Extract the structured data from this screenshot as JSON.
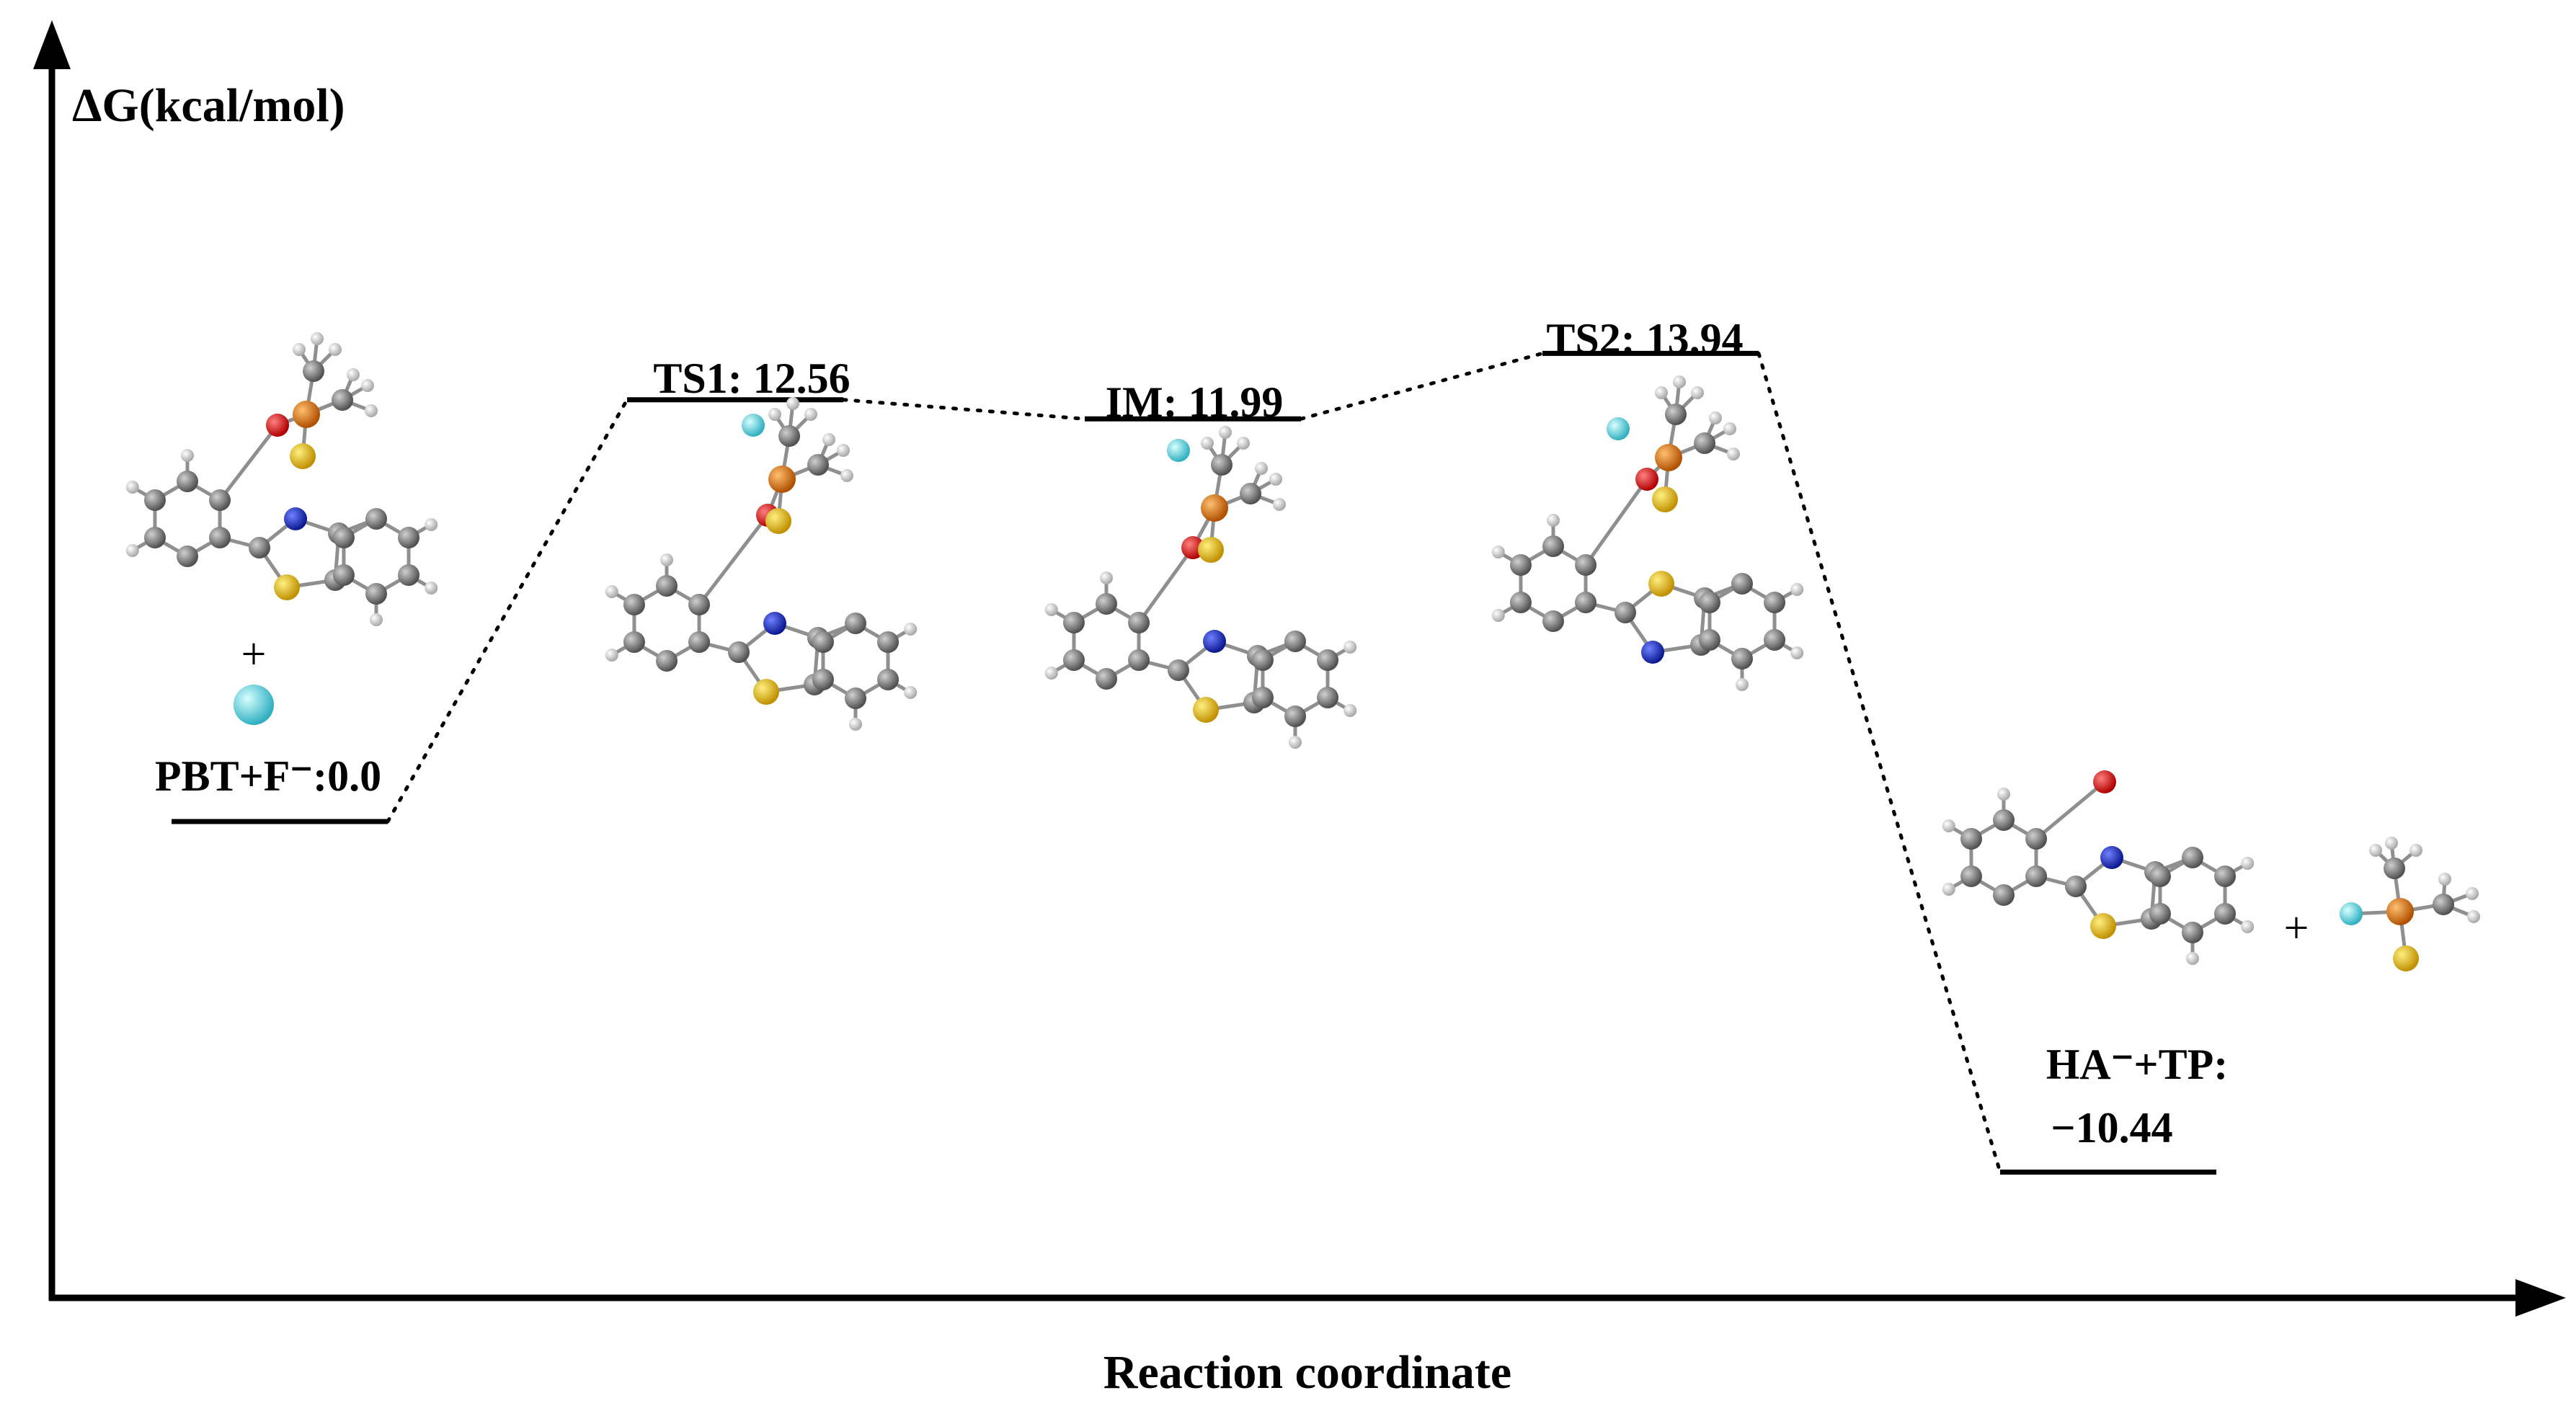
{
  "chart_data": {
    "type": "energy-profile",
    "ylabel": "ΔG(kcal/mol)",
    "xlabel": "Reaction coordinate",
    "ylim": [
      -16,
      30
    ],
    "levels": [
      {
        "id": "reactant",
        "name": "PBT+F⁻",
        "label": "PBT+F⁻:0.0",
        "value": 0.0
      },
      {
        "id": "ts1",
        "name": "TS1",
        "label": "TS1: 12.56",
        "value": 12.56
      },
      {
        "id": "im",
        "name": "IM",
        "label": "IM: 11.99",
        "value": 11.99
      },
      {
        "id": "ts2",
        "name": "TS2",
        "label": "TS2: 13.94",
        "value": 13.94
      },
      {
        "id": "product",
        "name": "HA⁻+TP",
        "label_line1": "HA⁻+TP:",
        "label_line2": "−10.44",
        "value": -10.44
      }
    ],
    "annotations": {
      "plus": "+"
    }
  },
  "colors": {
    "carbon": "#7a7a7a",
    "hydrogen": "#dcdcdc",
    "oxygen": "#e01010",
    "nitrogen": "#1020c0",
    "sulfur": "#f0c000",
    "phosphorus": "#e07810",
    "fluorine": "#5fd8e0"
  }
}
